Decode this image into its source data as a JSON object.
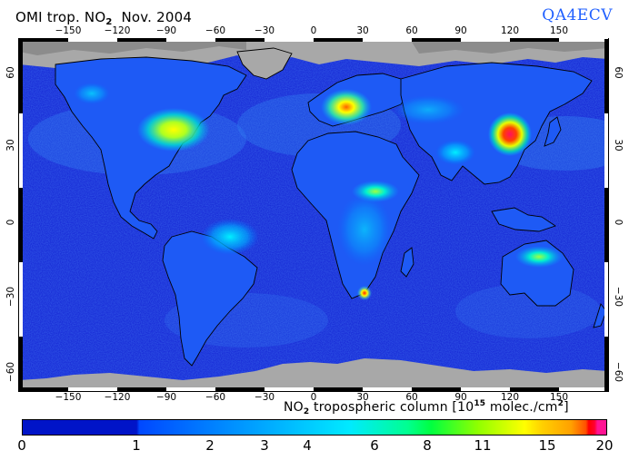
{
  "header": {
    "title_prefix": "OMI trop. NO",
    "title_sub": "2",
    "title_suffix": "Nov. 2004",
    "brand": "QA4ECV"
  },
  "axes": {
    "lon_ticks": [
      "−150",
      "−120",
      "−90",
      "−60",
      "−30",
      "0",
      "30",
      "60",
      "90",
      "120",
      "150"
    ],
    "lat_ticks": [
      "60",
      "30",
      "0",
      "−30",
      "−60"
    ],
    "xlabel_prefix": "NO",
    "xlabel_sub": "2",
    "xlabel_mid": " tropospheric column [10",
    "xlabel_sup": "15",
    "xlabel_unit": " molec./cm",
    "xlabel_sup2": "2",
    "xlabel_end": "]"
  },
  "colorbar": {
    "labels": [
      "0",
      "1",
      "2",
      "3",
      "4",
      "6",
      "8",
      "11",
      "15",
      "20"
    ],
    "colors": [
      "#0014c8",
      "#0050ff",
      "#00aaff",
      "#00ffff",
      "#00ff80",
      "#00ff00",
      "#ccff00",
      "#ffff00",
      "#ffc000",
      "#ff6000",
      "#ff0000",
      "#ff1493"
    ]
  },
  "map": {
    "projection": "equirectangular",
    "lon_range": [
      -180,
      180
    ],
    "lat_range": [
      -72,
      72
    ],
    "ocean_color": "#1a2fd8",
    "no_data_color": "#a8a8a8",
    "hotspots": [
      {
        "name": "Eastern China",
        "level": "very-high"
      },
      {
        "name": "Eastern United States",
        "level": "high"
      },
      {
        "name": "Western Europe (Benelux/Germany/Po Valley)",
        "level": "high"
      },
      {
        "name": "Highveld South Africa",
        "level": "high"
      },
      {
        "name": "Northern Australia",
        "level": "moderate"
      },
      {
        "name": "Central Africa",
        "level": "moderate"
      },
      {
        "name": "Northern Brazil",
        "level": "moderate"
      }
    ]
  }
}
